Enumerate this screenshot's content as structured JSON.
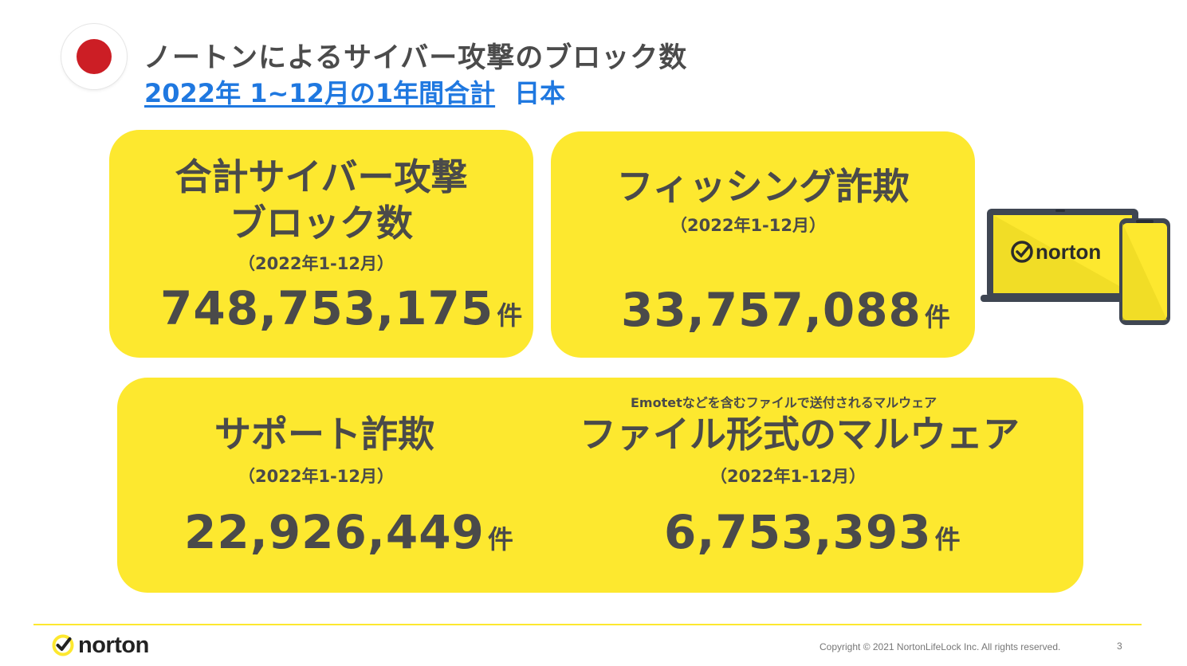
{
  "header": {
    "title": "ノートンによるサイバー攻撃のブロック数",
    "period": "2022年 1~12月の1年間合計",
    "region": "日本"
  },
  "cards": {
    "total": {
      "title_line1": "合計サイバー攻撃",
      "title_line2": "ブロック数",
      "period": "（2022年1-12月）",
      "value": "748,753,175",
      "unit": "件"
    },
    "phishing": {
      "title": "フィッシング詐欺",
      "period": "（2022年1-12月）",
      "value": "33,757,088",
      "unit": "件"
    },
    "support": {
      "title": "サポート詐欺",
      "period": "（2022年1-12月）",
      "value": "22,926,449",
      "unit": "件"
    },
    "malware": {
      "note": "Emotetなどを含むファイルで送付されるマルウェア",
      "title": "ファイル形式のマルウェア",
      "period": "（2022年1-12月）",
      "value": "6,753,393",
      "unit": "件"
    }
  },
  "device_logo": "norton",
  "footer": {
    "brand": "norton",
    "copyright": "Copyright © 2021 NortonLifeLock Inc. All rights reserved.",
    "page": "3"
  },
  "colors": {
    "card_yellow": "#fde82f",
    "accent_blue": "#1f78e0",
    "flag_red": "#cc1e25",
    "text_dark": "#4a4a4a"
  }
}
